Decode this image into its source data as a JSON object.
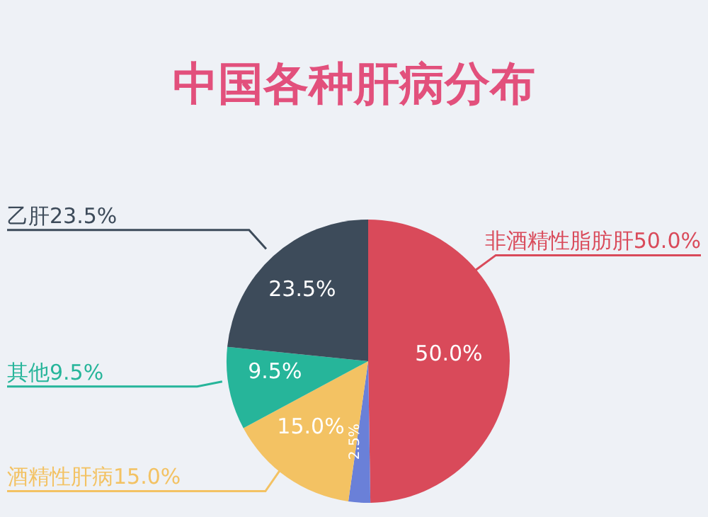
{
  "chart_data": {
    "type": "pie",
    "title": "中国各种肝病分布",
    "categories": [
      "非酒精性脂肪肝",
      null,
      "酒精性肝病",
      "其他",
      "乙肝"
    ],
    "values": [
      50.0,
      2.5,
      15.0,
      9.5,
      23.5
    ],
    "value_labels": [
      "50.0%",
      "2.5%",
      "15.0%",
      "9.5%",
      "23.5%"
    ],
    "colors": [
      "#d94a5a",
      "#6a80d8",
      "#f3c263",
      "#26b59a",
      "#3d4b5a"
    ]
  }
}
